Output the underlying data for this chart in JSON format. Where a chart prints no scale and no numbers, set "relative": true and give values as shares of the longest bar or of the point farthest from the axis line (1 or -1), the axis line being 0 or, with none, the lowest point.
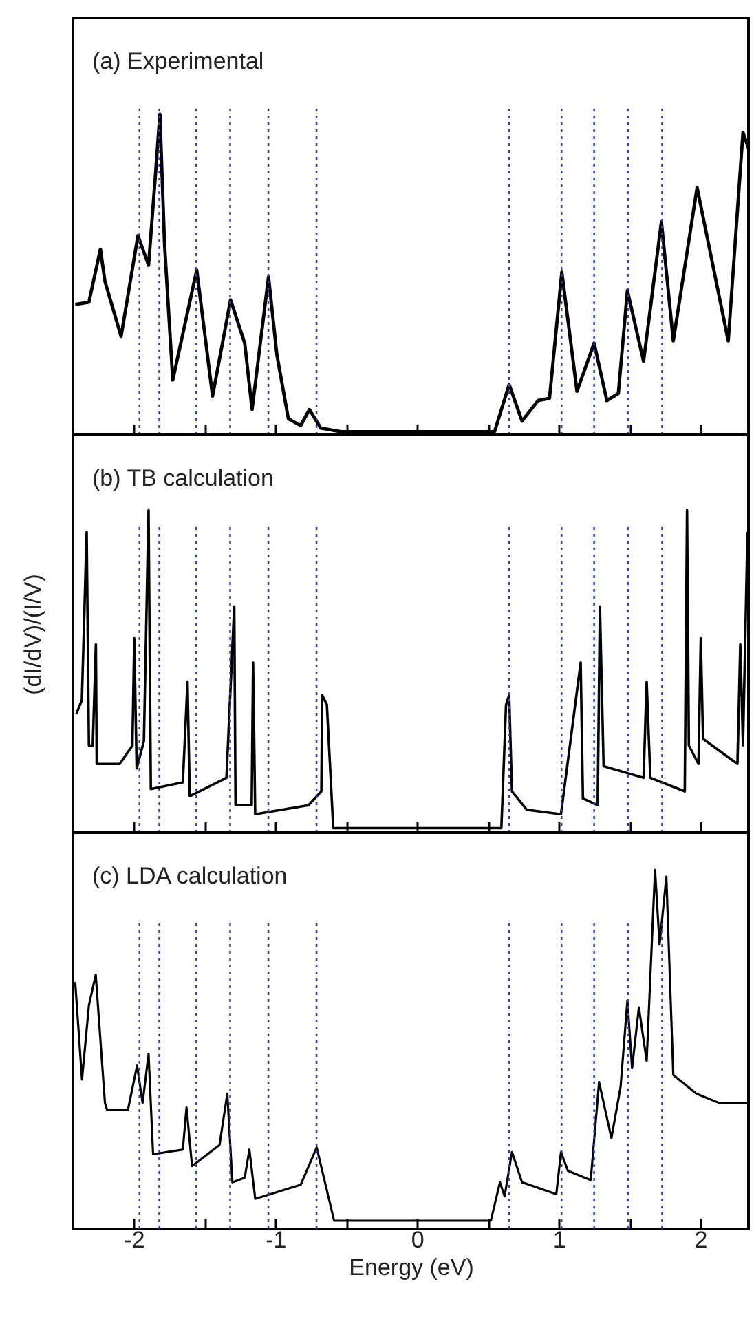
{
  "chart_data": [
    {
      "type": "line",
      "title": "(a) Experimental",
      "relative": true,
      "tick_labels": false,
      "xlim": [
        -2.43,
        2.34
      ],
      "xticks": [
        -2,
        {
          "value": -1.5,
          "label": null
        },
        -1,
        {
          "value": -0.5,
          "label": null
        },
        0,
        {
          "value": 0.5,
          "label": null
        },
        1,
        {
          "value": 1.5,
          "label": null
        },
        2
      ],
      "series": [
        {
          "color": "#000000",
          "x": [
            -2.414,
            -2.317,
            -2.236,
            -2.204,
            -2.09,
            -1.971,
            -1.896,
            -1.848,
            -1.816,
            -1.783,
            -1.725,
            -1.556,
            -1.444,
            -1.317,
            -1.217,
            -1.165,
            -1.049,
            -0.99,
            -0.909,
            -0.822,
            -0.76,
            -0.68,
            -0.537,
            0.547,
            0.65,
            0.741,
            0.854,
            0.935,
            1.022,
            1.129,
            1.25,
            1.34,
            1.421,
            1.485,
            1.599,
            1.725,
            1.809,
            1.977,
            2.197,
            2.301,
            2.34
          ],
          "values": [
            0.407,
            0.414,
            0.579,
            0.479,
            0.307,
            0.621,
            0.529,
            0.807,
            1.0,
            0.593,
            0.171,
            0.514,
            0.121,
            0.421,
            0.286,
            0.079,
            0.493,
            0.25,
            0.05,
            0.029,
            0.079,
            0.021,
            0.01,
            0.01,
            0.157,
            0.043,
            0.107,
            0.114,
            0.507,
            0.136,
            0.286,
            0.107,
            0.129,
            0.45,
            0.229,
            0.664,
            0.293,
            0.771,
            0.293,
            0.943,
            0.893
          ]
        }
      ],
      "ref_lines": [
        {
          "axis": "x",
          "value": -1.96,
          "color": "#2a44b8",
          "line_style": "dotted"
        },
        {
          "axis": "x",
          "value": -1.82,
          "color": "#2a44b8",
          "line_style": "dotted"
        },
        {
          "axis": "x",
          "value": -1.56,
          "color": "#2a44b8",
          "line_style": "dotted"
        },
        {
          "axis": "x",
          "value": -1.32,
          "color": "#2a44b8",
          "line_style": "dotted"
        },
        {
          "axis": "x",
          "value": -1.05,
          "color": "#2a44b8",
          "line_style": "dotted"
        },
        {
          "axis": "x",
          "value": -0.71,
          "color": "#2a44b8",
          "line_style": "dotted"
        },
        {
          "axis": "x",
          "value": 0.65,
          "color": "#2a44b8",
          "line_style": "dotted"
        },
        {
          "axis": "x",
          "value": 1.02,
          "color": "#2a44b8",
          "line_style": "dotted"
        },
        {
          "axis": "x",
          "value": 1.25,
          "color": "#2a44b8",
          "line_style": "dotted"
        },
        {
          "axis": "x",
          "value": 1.49,
          "color": "#2a44b8",
          "line_style": "dotted"
        },
        {
          "axis": "x",
          "value": 1.73,
          "color": "#2a44b8",
          "line_style": "dotted"
        }
      ]
    },
    {
      "type": "line",
      "title": "(b) TB calculation",
      "ylabel": "(dI/dV)/(I/V)",
      "relative": true,
      "tick_labels": false,
      "xlim": [
        -2.43,
        2.34
      ],
      "xticks": [
        -2,
        {
          "value": -1.5,
          "label": null
        },
        -1,
        {
          "value": -0.5,
          "label": null
        },
        0,
        {
          "value": 0.5,
          "label": null
        },
        1,
        {
          "value": 1.5,
          "label": null
        },
        2
      ],
      "series": [
        {
          "color": "#000000",
          "x": [
            -2.405,
            -2.367,
            -2.333,
            -2.317,
            -2.29,
            -2.268,
            -2.262,
            -2.1,
            -2.01,
            -1.997,
            -1.98,
            -1.929,
            -1.896,
            -1.88,
            -1.654,
            -1.621,
            -1.605,
            -1.346,
            -1.291,
            -1.282,
            -1.168,
            -1.158,
            -1.143,
            -0.767,
            -0.676,
            -0.67,
            -0.637,
            -0.592,
            0.595,
            0.628,
            0.65,
            0.67,
            0.774,
            1.016,
            1.155,
            1.171,
            1.275,
            1.291,
            1.317,
            1.599,
            1.621,
            1.647,
            1.89,
            1.906,
            1.919,
            1.987,
            2.003,
            2.019,
            2.262,
            2.282,
            2.301,
            2.333
          ],
          "values": [
            0.369,
            0.411,
            0.933,
            0.27,
            0.27,
            0.584,
            0.213,
            0.213,
            0.27,
            0.603,
            0.199,
            0.284,
            1.0,
            0.135,
            0.156,
            0.468,
            0.113,
            0.17,
            0.702,
            0.085,
            0.085,
            0.528,
            0.057,
            0.085,
            0.128,
            0.426,
            0.397,
            0.014,
            0.014,
            0.397,
            0.426,
            0.128,
            0.071,
            0.057,
            0.528,
            0.106,
            0.085,
            0.702,
            0.206,
            0.17,
            0.468,
            0.17,
            0.128,
            1.0,
            0.27,
            0.213,
            0.603,
            0.291,
            0.213,
            0.584,
            0.27,
            0.933
          ]
        }
      ],
      "ref_lines": [
        {
          "axis": "x",
          "value": -1.96,
          "color": "#2a44b8",
          "line_style": "dotted"
        },
        {
          "axis": "x",
          "value": -1.82,
          "color": "#2a44b8",
          "line_style": "dotted"
        },
        {
          "axis": "x",
          "value": -1.56,
          "color": "#2a44b8",
          "line_style": "dotted"
        },
        {
          "axis": "x",
          "value": -1.32,
          "color": "#2a44b8",
          "line_style": "dotted"
        },
        {
          "axis": "x",
          "value": -1.05,
          "color": "#2a44b8",
          "line_style": "dotted"
        },
        {
          "axis": "x",
          "value": -0.71,
          "color": "#2a44b8",
          "line_style": "dotted"
        },
        {
          "axis": "x",
          "value": 0.65,
          "color": "#2a44b8",
          "line_style": "dotted"
        },
        {
          "axis": "x",
          "value": 1.02,
          "color": "#2a44b8",
          "line_style": "dotted"
        },
        {
          "axis": "x",
          "value": 1.25,
          "color": "#2a44b8",
          "line_style": "dotted"
        },
        {
          "axis": "x",
          "value": 1.49,
          "color": "#2a44b8",
          "line_style": "dotted"
        },
        {
          "axis": "x",
          "value": 1.73,
          "color": "#2a44b8",
          "line_style": "dotted"
        }
      ]
    },
    {
      "type": "line",
      "title": "(c) LDA calculation",
      "xlabel": "Energy (eV)",
      "relative": true,
      "tick_labels": "x",
      "xlim": [
        -2.43,
        2.34
      ],
      "xticks": [
        -2,
        {
          "value": -1.5,
          "label": null
        },
        -1,
        {
          "value": -0.5,
          "label": null
        },
        0,
        {
          "value": 0.5,
          "label": null
        },
        1,
        {
          "value": 1.5,
          "label": null
        },
        2
      ],
      "series": [
        {
          "color": "#000000",
          "x": [
            -2.414,
            -2.366,
            -2.317,
            -2.269,
            -2.204,
            -2.188,
            -2.042,
            -1.977,
            -1.938,
            -1.896,
            -1.864,
            -1.654,
            -1.628,
            -1.589,
            -1.395,
            -1.34,
            -1.304,
            -1.217,
            -1.184,
            -1.143,
            -0.822,
            -0.709,
            -0.586,
            0.521,
            0.585,
            0.618,
            0.67,
            0.741,
            0.983,
            1.016,
            1.065,
            1.226,
            1.285,
            1.372,
            1.437,
            1.485,
            1.518,
            1.566,
            1.621,
            1.68,
            1.712,
            1.76,
            1.809,
            1.971,
            2.133,
            2.34
          ],
          "values": [
            0.688,
            0.416,
            0.623,
            0.708,
            0.351,
            0.331,
            0.331,
            0.455,
            0.351,
            0.487,
            0.208,
            0.221,
            0.338,
            0.175,
            0.234,
            0.377,
            0.13,
            0.143,
            0.221,
            0.084,
            0.123,
            0.227,
            0.023,
            0.023,
            0.13,
            0.091,
            0.214,
            0.13,
            0.097,
            0.214,
            0.162,
            0.136,
            0.409,
            0.253,
            0.396,
            0.636,
            0.448,
            0.617,
            0.468,
            1.0,
            0.792,
            0.981,
            0.429,
            0.377,
            0.351,
            0.351
          ]
        }
      ],
      "ref_lines": [
        {
          "axis": "x",
          "value": -1.96,
          "color": "#2a44b8",
          "line_style": "dotted"
        },
        {
          "axis": "x",
          "value": -1.82,
          "color": "#2a44b8",
          "line_style": "dotted"
        },
        {
          "axis": "x",
          "value": -1.56,
          "color": "#2a44b8",
          "line_style": "dotted"
        },
        {
          "axis": "x",
          "value": -1.32,
          "color": "#2a44b8",
          "line_style": "dotted"
        },
        {
          "axis": "x",
          "value": -1.05,
          "color": "#2a44b8",
          "line_style": "dotted"
        },
        {
          "axis": "x",
          "value": -0.71,
          "color": "#2a44b8",
          "line_style": "dotted"
        },
        {
          "axis": "x",
          "value": 0.65,
          "color": "#2a44b8",
          "line_style": "dotted"
        },
        {
          "axis": "x",
          "value": 1.02,
          "color": "#2a44b8",
          "line_style": "dotted"
        },
        {
          "axis": "x",
          "value": 1.25,
          "color": "#2a44b8",
          "line_style": "dotted"
        },
        {
          "axis": "x",
          "value": 1.49,
          "color": "#2a44b8",
          "line_style": "dotted"
        },
        {
          "axis": "x",
          "value": 1.73,
          "color": "#2a44b8",
          "line_style": "dotted"
        }
      ]
    }
  ]
}
